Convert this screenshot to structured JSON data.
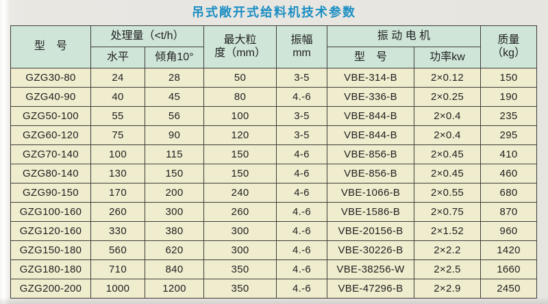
{
  "title": "吊式敞开式给料机技术参数",
  "colors": {
    "title_text": "#1b8ec3",
    "header_bg": "#cfe5d8",
    "row_bg": "#f0ecce",
    "border": "#3d3c38",
    "page_bg": "#e8e6e1"
  },
  "table": {
    "headers": {
      "model": "型　号",
      "capacity_group": "处理量（<t/h）",
      "capacity_horizontal": "水平",
      "capacity_incline": "倾角10°",
      "max_particle_line1": "最大粒",
      "max_particle_line2": "度（mm）",
      "amplitude_line1": "振幅",
      "amplitude_line2": "mm",
      "motor_group": "振 动 电 机",
      "motor_model": "型　号",
      "motor_power": "功率kw",
      "mass_line1": "质量",
      "mass_line2": "（kg）"
    },
    "rows": [
      [
        "GZG30-80",
        "24",
        "28",
        "50",
        "3-5",
        "VBE-314-B",
        "2×0.12",
        "150"
      ],
      [
        "GZG40-90",
        "40",
        "45",
        "80",
        "4.-6",
        "VBE-336-B",
        "2×0.25",
        "190"
      ],
      [
        "GZG50-100",
        "55",
        "56",
        "100",
        "3-5",
        "VBE-844-B",
        "2×0.4",
        "235"
      ],
      [
        "GZG60-120",
        "75",
        "90",
        "120",
        "3-5",
        "VBE-844-B",
        "2×0.4",
        "295"
      ],
      [
        "GZG70-140",
        "100",
        "115",
        "150",
        "4-6",
        "VBE-856-B",
        "2×0.45",
        "410"
      ],
      [
        "GZG80-140",
        "130",
        "150",
        "150",
        "4-6",
        "VBE-856-B",
        "2×0.45",
        "460"
      ],
      [
        "GZG90-150",
        "170",
        "200",
        "240",
        "4-6",
        "VBE-1066-B",
        "2×0.55",
        "680"
      ],
      [
        "GZG100-160",
        "260",
        "300",
        "260",
        "4.-6",
        "VBE-1586-B",
        "2×0.75",
        "870"
      ],
      [
        "GZG120-160",
        "330",
        "380",
        "300",
        "4.-6",
        "VBE-20156-B",
        "2×1.52",
        "960"
      ],
      [
        "GZG150-180",
        "560",
        "620",
        "300",
        "4.-6",
        "VBE-30226-B",
        "2×2.2",
        "1420"
      ],
      [
        "GZG180-180",
        "710",
        "840",
        "350",
        "4.-6",
        "VBE-38256-W",
        "2×2.5",
        "1660"
      ],
      [
        "GZG200-200",
        "1000",
        "1200",
        "350",
        "4.-6",
        "VBE-47296-B",
        "2×2.9",
        "2450"
      ]
    ]
  }
}
